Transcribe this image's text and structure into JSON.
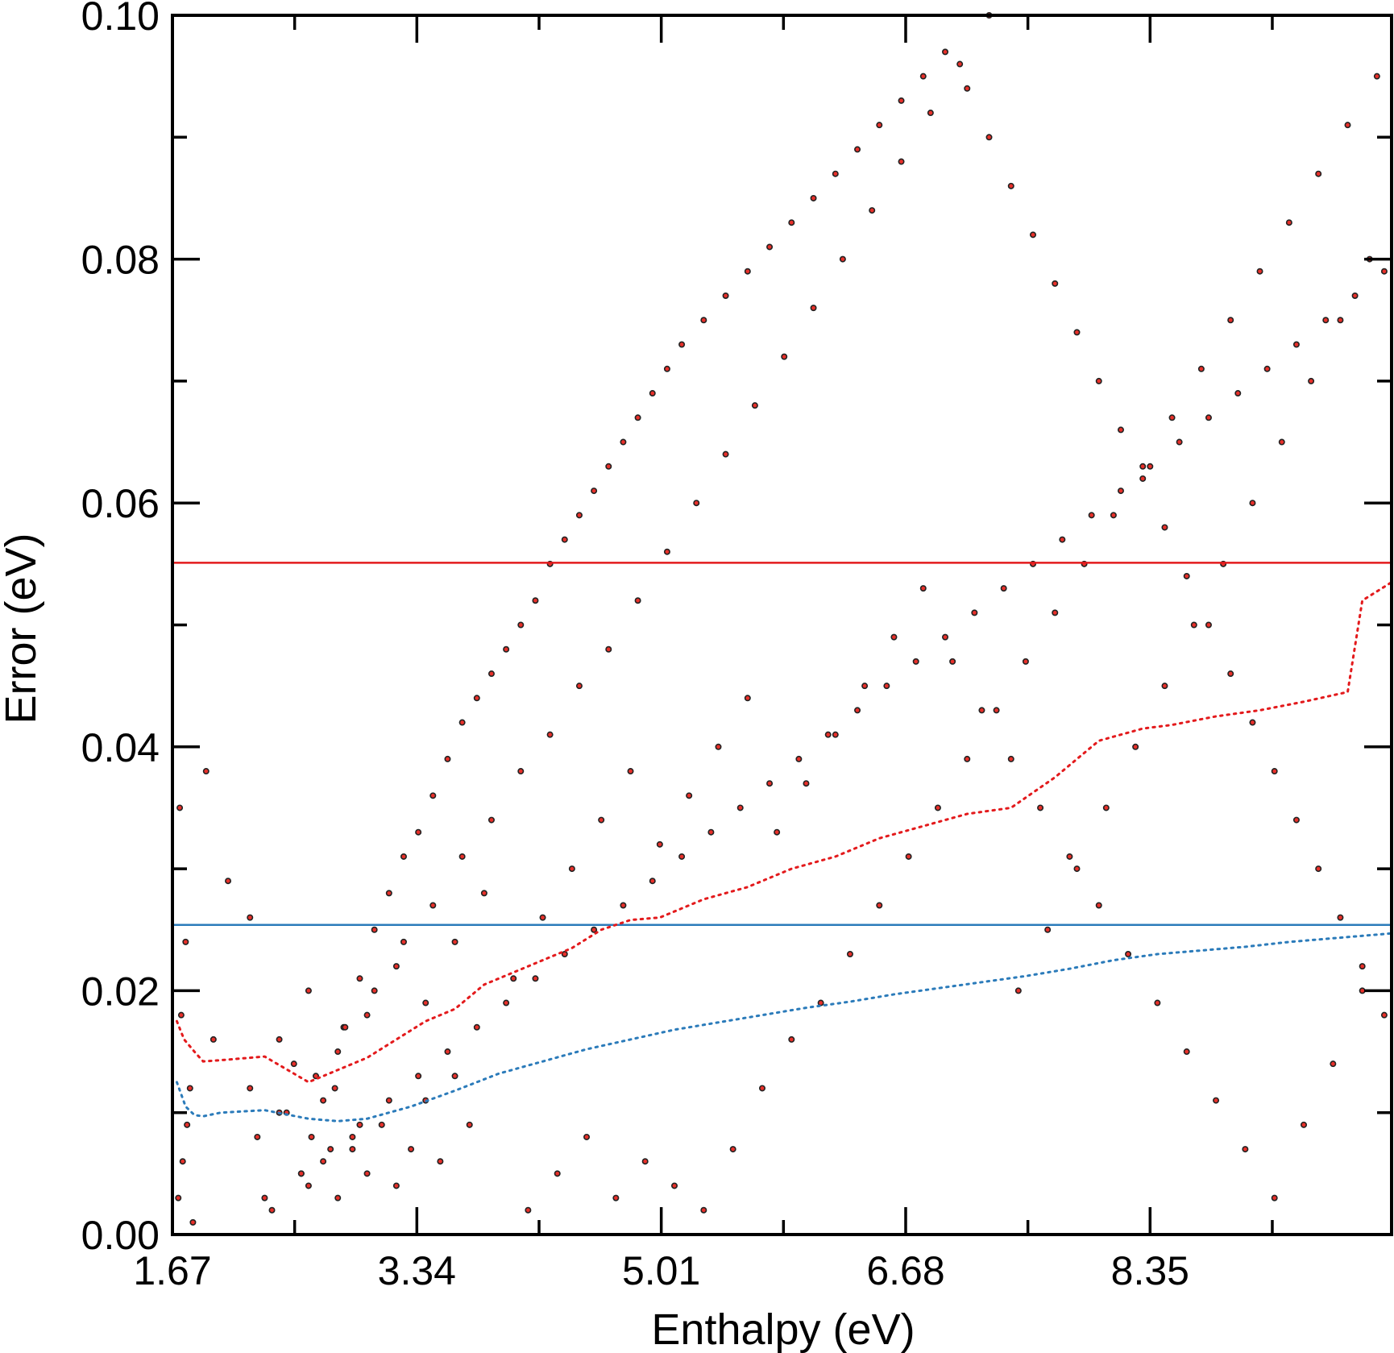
{
  "chart_data": {
    "type": "scatter",
    "title": "",
    "xlabel": "Enthalpy (eV)",
    "ylabel": "Error (eV)",
    "xlim": [
      1.67,
      10.0
    ],
    "ylim": [
      0.0,
      0.1
    ],
    "x_ticks": [
      1.67,
      3.34,
      5.01,
      6.68,
      8.35
    ],
    "x_tick_labels": [
      "1.67",
      "3.34",
      "5.01",
      "6.68",
      "8.35"
    ],
    "y_ticks": [
      0.0,
      0.02,
      0.04,
      0.06,
      0.08,
      0.1
    ],
    "y_tick_labels": [
      "0.00",
      "0.02",
      "0.04",
      "0.06",
      "0.08",
      "0.10"
    ],
    "grid": false,
    "legend": "none",
    "colors": {
      "points_fill": "#e8302a",
      "points_edge": "#222222",
      "red": "#e31a1c",
      "blue": "#2b7bba"
    },
    "reference_lines": [
      {
        "y": 0.0551,
        "color": "#e31a1c",
        "style": "solid"
      },
      {
        "y": 0.0254,
        "color": "#2b7bba",
        "style": "solid"
      }
    ],
    "series": [
      {
        "type": "line",
        "style": "dotted",
        "color": "#e31a1c",
        "x": [
          1.7,
          1.75,
          1.82,
          1.88,
          2.0,
          2.3,
          2.6,
          2.8,
          3.0,
          3.2,
          3.4,
          3.6,
          3.8,
          4.0,
          4.2,
          4.4,
          4.6,
          4.8,
          5.0,
          5.3,
          5.6,
          5.9,
          6.2,
          6.5,
          6.8,
          7.1,
          7.4,
          7.7,
          8.0,
          8.3,
          8.5,
          8.8,
          9.1,
          9.4,
          9.7,
          9.8,
          10.0
        ],
        "y": [
          0.0175,
          0.016,
          0.015,
          0.0142,
          0.0143,
          0.0146,
          0.0125,
          0.0135,
          0.0145,
          0.016,
          0.0175,
          0.0185,
          0.0205,
          0.0215,
          0.0225,
          0.0235,
          0.025,
          0.0258,
          0.026,
          0.0275,
          0.0285,
          0.03,
          0.031,
          0.0325,
          0.0335,
          0.0345,
          0.035,
          0.0375,
          0.0405,
          0.0415,
          0.0418,
          0.0425,
          0.043,
          0.0437,
          0.0445,
          0.052,
          0.0535
        ]
      },
      {
        "type": "line",
        "style": "dotted",
        "color": "#2b7bba",
        "x": [
          1.7,
          1.76,
          1.82,
          1.88,
          2.0,
          2.3,
          2.6,
          2.8,
          3.0,
          3.3,
          3.6,
          3.9,
          4.2,
          4.5,
          4.8,
          5.1,
          5.4,
          5.7,
          6.0,
          6.3,
          6.6,
          6.9,
          7.2,
          7.5,
          7.8,
          8.1,
          8.4,
          8.7,
          9.0,
          9.3,
          9.6,
          10.0
        ],
        "y": [
          0.0125,
          0.0105,
          0.0098,
          0.0097,
          0.01,
          0.0102,
          0.0095,
          0.0093,
          0.0095,
          0.0105,
          0.0118,
          0.0132,
          0.0142,
          0.0152,
          0.016,
          0.0168,
          0.0174,
          0.018,
          0.0186,
          0.0191,
          0.0197,
          0.0202,
          0.0207,
          0.0212,
          0.0218,
          0.0225,
          0.023,
          0.0233,
          0.0236,
          0.024,
          0.0243,
          0.0247
        ]
      },
      {
        "type": "scatter",
        "marker": "dot",
        "color": "#e8302a",
        "x": [
          1.71,
          1.74,
          1.77,
          1.79,
          1.73,
          1.81,
          1.76,
          1.72,
          1.9,
          2.05,
          2.2,
          1.95,
          2.4,
          2.55,
          2.7,
          2.9,
          2.35,
          2.5,
          2.62,
          2.78,
          2.84,
          2.95,
          3.05,
          3.15,
          3.25,
          3.35,
          3.45,
          3.55,
          3.65,
          3.75,
          3.85,
          3.95,
          4.05,
          4.15,
          4.25,
          4.35,
          4.45,
          4.55,
          4.65,
          4.75,
          4.85,
          4.95,
          5.05,
          5.15,
          5.3,
          5.45,
          5.6,
          5.75,
          5.9,
          6.05,
          6.2,
          6.35,
          6.5,
          6.65,
          6.8,
          6.95,
          7.1,
          7.25,
          7.4,
          7.55,
          7.7,
          7.85,
          8.0,
          8.15,
          8.3,
          8.45,
          8.6,
          8.75,
          8.9,
          9.05,
          9.2,
          9.35,
          9.5,
          9.65,
          9.8,
          9.95,
          2.6,
          2.7,
          2.8,
          2.9,
          3.0,
          3.1,
          3.2,
          3.3,
          3.4,
          3.5,
          3.6,
          3.7,
          4.1,
          4.3,
          4.5,
          4.7,
          4.9,
          5.1,
          5.3,
          5.5,
          5.7,
          5.9,
          6.1,
          6.3,
          6.5,
          6.7,
          6.9,
          7.1,
          7.3,
          7.5,
          7.7,
          7.9,
          8.1,
          8.3,
          8.5,
          8.7,
          8.9,
          9.1,
          9.3,
          9.5,
          9.7,
          9.9,
          2.2,
          2.4,
          2.6,
          2.8,
          3.0,
          3.2,
          3.4,
          3.6,
          3.8,
          4.0,
          4.2,
          4.4,
          4.6,
          4.8,
          5.0,
          5.2,
          5.4,
          5.6,
          5.8,
          6.0,
          6.2,
          6.4,
          6.6,
          6.8,
          7.0,
          7.2,
          7.4,
          7.6,
          7.8,
          8.0,
          8.2,
          8.4,
          8.6,
          8.8,
          9.0,
          9.2,
          9.4,
          9.6,
          9.8,
          2.25,
          2.45,
          2.65,
          2.85,
          3.05,
          3.25,
          3.45,
          3.65,
          3.85,
          4.05,
          4.25,
          4.45,
          4.65,
          4.85,
          5.05,
          5.25,
          5.45,
          5.65,
          5.85,
          6.05,
          6.25,
          6.45,
          6.65,
          6.85,
          7.05,
          7.25,
          7.45,
          7.65,
          7.85,
          8.05,
          8.25,
          8.45,
          8.65,
          8.85,
          9.05,
          9.25,
          9.45,
          9.65,
          9.85,
          2.3,
          2.55,
          2.75,
          2.95,
          3.15,
          3.35,
          3.55,
          3.75,
          3.95,
          4.15,
          4.35,
          4.55,
          4.75,
          4.95,
          5.15,
          5.35,
          5.55,
          5.75,
          5.95,
          6.15,
          6.35,
          6.55,
          6.75,
          6.95,
          7.15,
          7.35,
          7.55,
          7.75,
          7.95,
          8.15,
          8.35,
          8.55,
          8.75,
          8.95,
          9.15,
          9.35,
          9.55,
          9.75,
          9.95
        ],
        "y": [
          0.003,
          0.006,
          0.009,
          0.012,
          0.018,
          0.001,
          0.024,
          0.035,
          0.038,
          0.029,
          0.026,
          0.016,
          0.01,
          0.005,
          0.011,
          0.007,
          0.002,
          0.014,
          0.008,
          0.012,
          0.017,
          0.021,
          0.025,
          0.028,
          0.031,
          0.033,
          0.036,
          0.039,
          0.042,
          0.044,
          0.046,
          0.048,
          0.05,
          0.052,
          0.055,
          0.057,
          0.059,
          0.061,
          0.063,
          0.065,
          0.067,
          0.069,
          0.071,
          0.073,
          0.075,
          0.077,
          0.079,
          0.081,
          0.083,
          0.085,
          0.087,
          0.089,
          0.091,
          0.093,
          0.095,
          0.097,
          0.094,
          0.09,
          0.086,
          0.082,
          0.078,
          0.074,
          0.07,
          0.066,
          0.062,
          0.058,
          0.054,
          0.05,
          0.046,
          0.042,
          0.038,
          0.034,
          0.03,
          0.026,
          0.022,
          0.018,
          0.004,
          0.006,
          0.003,
          0.008,
          0.005,
          0.009,
          0.004,
          0.007,
          0.011,
          0.006,
          0.013,
          0.009,
          0.002,
          0.005,
          0.008,
          0.003,
          0.006,
          0.004,
          0.002,
          0.007,
          0.012,
          0.016,
          0.019,
          0.023,
          0.027,
          0.031,
          0.035,
          0.039,
          0.043,
          0.047,
          0.051,
          0.055,
          0.059,
          0.063,
          0.067,
          0.071,
          0.075,
          0.079,
          0.083,
          0.087,
          0.091,
          0.095,
          0.012,
          0.016,
          0.02,
          0.015,
          0.018,
          0.022,
          0.019,
          0.024,
          0.028,
          0.021,
          0.026,
          0.03,
          0.034,
          0.038,
          0.032,
          0.036,
          0.04,
          0.044,
          0.033,
          0.037,
          0.041,
          0.045,
          0.049,
          0.053,
          0.047,
          0.043,
          0.039,
          0.035,
          0.031,
          0.027,
          0.023,
          0.019,
          0.015,
          0.011,
          0.007,
          0.003,
          0.009,
          0.014,
          0.02,
          0.008,
          0.01,
          0.013,
          0.017,
          0.02,
          0.024,
          0.027,
          0.031,
          0.034,
          0.038,
          0.041,
          0.045,
          0.048,
          0.052,
          0.056,
          0.06,
          0.064,
          0.068,
          0.072,
          0.076,
          0.08,
          0.084,
          0.088,
          0.092,
          0.096,
          0.1,
          0.02,
          0.025,
          0.03,
          0.035,
          0.04,
          0.045,
          0.05,
          0.055,
          0.06,
          0.065,
          0.07,
          0.075,
          0.08,
          0.003,
          0.005,
          0.007,
          0.009,
          0.011,
          0.013,
          0.015,
          0.017,
          0.019,
          0.021,
          0.023,
          0.025,
          0.027,
          0.029,
          0.031,
          0.033,
          0.035,
          0.037,
          0.039,
          0.041,
          0.043,
          0.045,
          0.047,
          0.049,
          0.051,
          0.053,
          0.055,
          0.057,
          0.059,
          0.061,
          0.063,
          0.065,
          0.067,
          0.069,
          0.071,
          0.073,
          0.075,
          0.077,
          0.079
        ]
      }
    ]
  }
}
